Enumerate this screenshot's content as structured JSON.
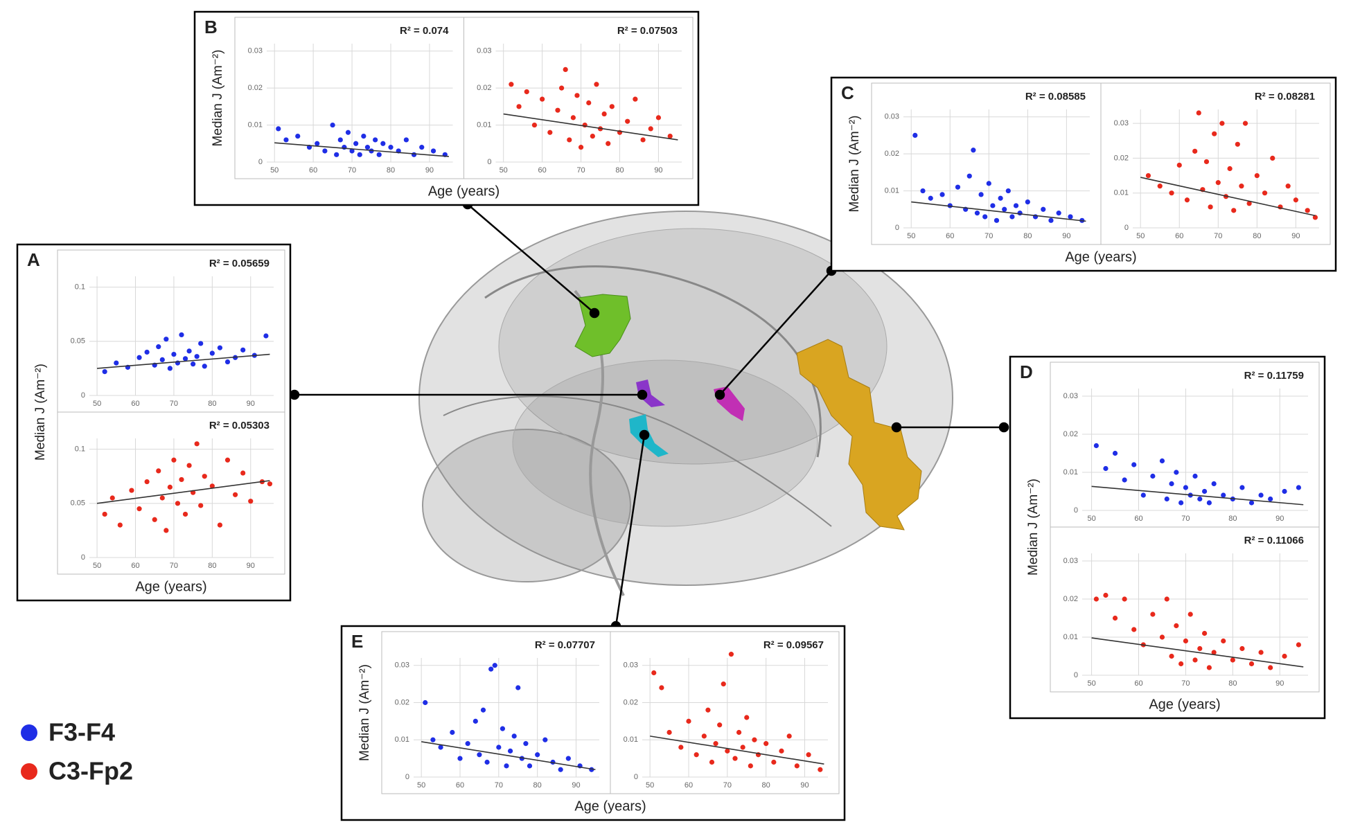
{
  "panels": [
    {
      "letter": "A",
      "y_label": "Median J (Am⁻²)",
      "x_label": "Age (years)"
    },
    {
      "letter": "B",
      "y_label": "Median J (Am⁻²)",
      "x_label": "Age (years)"
    },
    {
      "letter": "C",
      "y_label": "Median J (Am⁻²)",
      "x_label": "Age (years)"
    },
    {
      "letter": "D",
      "y_label": "Median J (Am⁻²)",
      "x_label": "Age (years)"
    },
    {
      "letter": "E",
      "y_label": "Median J (Am⁻²)",
      "x_label": "Age (years)"
    }
  ],
  "legend": [
    {
      "name": "F3-F4",
      "color": "#1f2ee6"
    },
    {
      "name": "C3-Fp2",
      "color": "#e8291c"
    }
  ],
  "chart_data": [
    {
      "type": "scatter",
      "annotation": "R² = 0.05659",
      "color": "#1f2ee6",
      "xlim": [
        48,
        96
      ],
      "ylim": [
        0,
        0.11
      ],
      "xticks": [
        50,
        60,
        70,
        80,
        90
      ],
      "yticks": [
        0,
        0.05,
        0.1
      ],
      "grid": true,
      "x": [
        52,
        55,
        58,
        61,
        63,
        65,
        66,
        67,
        68,
        69,
        70,
        71,
        72,
        73,
        74,
        75,
        76,
        77,
        78,
        80,
        82,
        84,
        86,
        88,
        91,
        94
      ],
      "values": [
        0.022,
        0.03,
        0.026,
        0.035,
        0.04,
        0.028,
        0.045,
        0.033,
        0.052,
        0.025,
        0.038,
        0.03,
        0.056,
        0.034,
        0.041,
        0.029,
        0.036,
        0.048,
        0.027,
        0.039,
        0.044,
        0.031,
        0.035,
        0.042,
        0.037,
        0.055
      ],
      "trend": {
        "x": [
          50,
          95
        ],
        "y": [
          0.025,
          0.038
        ]
      }
    },
    {
      "type": "scatter",
      "annotation": "R² = 0.05303",
      "color": "#e8291c",
      "xlim": [
        48,
        96
      ],
      "ylim": [
        0,
        0.11
      ],
      "xticks": [
        50,
        60,
        70,
        80,
        90
      ],
      "yticks": [
        0,
        0.05,
        0.1
      ],
      "grid": true,
      "x": [
        52,
        54,
        56,
        59,
        61,
        63,
        65,
        66,
        67,
        68,
        69,
        70,
        71,
        72,
        73,
        74,
        75,
        76,
        77,
        78,
        80,
        82,
        84,
        86,
        88,
        90,
        93,
        95
      ],
      "values": [
        0.04,
        0.055,
        0.03,
        0.062,
        0.045,
        0.07,
        0.035,
        0.08,
        0.055,
        0.025,
        0.065,
        0.09,
        0.05,
        0.072,
        0.04,
        0.085,
        0.06,
        0.105,
        0.048,
        0.075,
        0.066,
        0.03,
        0.09,
        0.058,
        0.078,
        0.052,
        0.07,
        0.068
      ],
      "trend": {
        "x": [
          50,
          95
        ],
        "y": [
          0.05,
          0.071
        ]
      }
    },
    {
      "type": "scatter",
      "annotation": "R² = 0.074",
      "color": "#1f2ee6",
      "xlim": [
        48,
        96
      ],
      "ylim": [
        0,
        0.032
      ],
      "xticks": [
        50,
        60,
        70,
        80,
        90
      ],
      "yticks": [
        0,
        0.01,
        0.02,
        0.03
      ],
      "grid": true,
      "x": [
        51,
        53,
        56,
        59,
        61,
        63,
        65,
        66,
        67,
        68,
        69,
        70,
        71,
        72,
        73,
        74,
        75,
        76,
        77,
        78,
        80,
        82,
        84,
        86,
        88,
        91,
        94
      ],
      "values": [
        0.009,
        0.006,
        0.007,
        0.004,
        0.005,
        0.003,
        0.01,
        0.002,
        0.006,
        0.004,
        0.008,
        0.003,
        0.005,
        0.002,
        0.007,
        0.004,
        0.003,
        0.006,
        0.002,
        0.005,
        0.004,
        0.003,
        0.006,
        0.002,
        0.004,
        0.003,
        0.002
      ],
      "trend": {
        "x": [
          50,
          95
        ],
        "y": [
          0.0052,
          0.0015
        ]
      }
    },
    {
      "type": "scatter",
      "annotation": "R² = 0.07503",
      "color": "#e8291c",
      "xlim": [
        48,
        96
      ],
      "ylim": [
        0,
        0.032
      ],
      "xticks": [
        50,
        60,
        70,
        80,
        90
      ],
      "yticks": [
        0,
        0.01,
        0.02,
        0.03
      ],
      "grid": true,
      "x": [
        52,
        54,
        56,
        58,
        60,
        62,
        64,
        65,
        66,
        67,
        68,
        69,
        70,
        71,
        72,
        73,
        74,
        75,
        76,
        77,
        78,
        80,
        82,
        84,
        86,
        88,
        90,
        93
      ],
      "values": [
        0.021,
        0.015,
        0.019,
        0.01,
        0.017,
        0.008,
        0.014,
        0.02,
        0.025,
        0.006,
        0.012,
        0.018,
        0.004,
        0.01,
        0.016,
        0.007,
        0.021,
        0.009,
        0.013,
        0.005,
        0.015,
        0.008,
        0.011,
        0.017,
        0.006,
        0.009,
        0.012,
        0.007
      ],
      "trend": {
        "x": [
          50,
          95
        ],
        "y": [
          0.013,
          0.006
        ]
      }
    },
    {
      "type": "scatter",
      "annotation": "R² = 0.08585",
      "color": "#1f2ee6",
      "xlim": [
        48,
        96
      ],
      "ylim": [
        0,
        0.032
      ],
      "xticks": [
        50,
        60,
        70,
        80,
        90
      ],
      "yticks": [
        0,
        0.01,
        0.02,
        0.03
      ],
      "grid": true,
      "x": [
        51,
        53,
        55,
        58,
        60,
        62,
        64,
        65,
        66,
        67,
        68,
        69,
        70,
        71,
        72,
        73,
        74,
        75,
        76,
        77,
        78,
        80,
        82,
        84,
        86,
        88,
        91,
        94
      ],
      "values": [
        0.025,
        0.01,
        0.008,
        0.009,
        0.006,
        0.011,
        0.005,
        0.014,
        0.021,
        0.004,
        0.009,
        0.003,
        0.012,
        0.006,
        0.002,
        0.008,
        0.005,
        0.01,
        0.003,
        0.006,
        0.004,
        0.007,
        0.003,
        0.005,
        0.002,
        0.004,
        0.003,
        0.002
      ],
      "trend": {
        "x": [
          50,
          95
        ],
        "y": [
          0.007,
          0.0018
        ]
      }
    },
    {
      "type": "scatter",
      "annotation": "R² = 0.08281",
      "color": "#e8291c",
      "xlim": [
        48,
        96
      ],
      "ylim": [
        0,
        0.034
      ],
      "xticks": [
        50,
        60,
        70,
        80,
        90
      ],
      "yticks": [
        0,
        0.01,
        0.02,
        0.03
      ],
      "grid": true,
      "x": [
        52,
        55,
        58,
        60,
        62,
        64,
        65,
        66,
        67,
        68,
        69,
        70,
        71,
        72,
        73,
        74,
        75,
        76,
        77,
        78,
        80,
        82,
        84,
        86,
        88,
        90,
        93,
        95
      ],
      "values": [
        0.015,
        0.012,
        0.01,
        0.018,
        0.008,
        0.022,
        0.033,
        0.011,
        0.019,
        0.006,
        0.027,
        0.013,
        0.03,
        0.009,
        0.017,
        0.005,
        0.024,
        0.012,
        0.03,
        0.007,
        0.015,
        0.01,
        0.02,
        0.006,
        0.012,
        0.008,
        0.005,
        0.003
      ],
      "trend": {
        "x": [
          50,
          95
        ],
        "y": [
          0.0145,
          0.0035
        ]
      }
    },
    {
      "type": "scatter",
      "annotation": "R² = 0.11759",
      "color": "#1f2ee6",
      "xlim": [
        48,
        96
      ],
      "ylim": [
        0,
        0.032
      ],
      "xticks": [
        50,
        60,
        70,
        80,
        90
      ],
      "yticks": [
        0,
        0.01,
        0.02,
        0.03
      ],
      "grid": true,
      "x": [
        51,
        53,
        55,
        57,
        59,
        61,
        63,
        65,
        66,
        67,
        68,
        69,
        70,
        71,
        72,
        73,
        74,
        75,
        76,
        78,
        80,
        82,
        84,
        86,
        88,
        91,
        94
      ],
      "values": [
        0.017,
        0.011,
        0.015,
        0.008,
        0.012,
        0.004,
        0.009,
        0.013,
        0.003,
        0.007,
        0.01,
        0.002,
        0.006,
        0.004,
        0.009,
        0.003,
        0.005,
        0.002,
        0.007,
        0.004,
        0.003,
        0.006,
        0.002,
        0.004,
        0.003,
        0.005,
        0.006
      ],
      "trend": {
        "x": [
          50,
          95
        ],
        "y": [
          0.0063,
          0.0015
        ]
      }
    },
    {
      "type": "scatter",
      "annotation": "R² = 0.11066",
      "color": "#e8291c",
      "xlim": [
        48,
        96
      ],
      "ylim": [
        0,
        0.032
      ],
      "xticks": [
        50,
        60,
        70,
        80,
        90
      ],
      "yticks": [
        0,
        0.01,
        0.02,
        0.03
      ],
      "grid": true,
      "x": [
        51,
        53,
        55,
        57,
        59,
        61,
        63,
        65,
        66,
        67,
        68,
        69,
        70,
        71,
        72,
        73,
        74,
        75,
        76,
        78,
        80,
        82,
        84,
        86,
        88,
        91,
        94
      ],
      "values": [
        0.02,
        0.021,
        0.015,
        0.02,
        0.012,
        0.008,
        0.016,
        0.01,
        0.02,
        0.005,
        0.013,
        0.003,
        0.009,
        0.016,
        0.004,
        0.007,
        0.011,
        0.002,
        0.006,
        0.009,
        0.004,
        0.007,
        0.003,
        0.006,
        0.002,
        0.005,
        0.008
      ],
      "trend": {
        "x": [
          50,
          95
        ],
        "y": [
          0.0098,
          0.0022
        ]
      }
    },
    {
      "type": "scatter",
      "annotation": "R² = 0.07707",
      "color": "#1f2ee6",
      "xlim": [
        48,
        96
      ],
      "ylim": [
        0,
        0.032
      ],
      "xticks": [
        50,
        60,
        70,
        80,
        90
      ],
      "yticks": [
        0,
        0.01,
        0.02,
        0.03
      ],
      "grid": true,
      "x": [
        51,
        53,
        55,
        58,
        60,
        62,
        64,
        65,
        66,
        67,
        68,
        69,
        70,
        71,
        72,
        73,
        74,
        75,
        76,
        77,
        78,
        80,
        82,
        84,
        86,
        88,
        91,
        94
      ],
      "values": [
        0.02,
        0.01,
        0.008,
        0.012,
        0.005,
        0.009,
        0.015,
        0.006,
        0.018,
        0.004,
        0.029,
        0.03,
        0.008,
        0.013,
        0.003,
        0.007,
        0.011,
        0.024,
        0.005,
        0.009,
        0.003,
        0.006,
        0.01,
        0.004,
        0.002,
        0.005,
        0.003,
        0.002
      ],
      "trend": {
        "x": [
          50,
          95
        ],
        "y": [
          0.0095,
          0.002
        ]
      }
    },
    {
      "type": "scatter",
      "annotation": "R² = 0.09567",
      "color": "#e8291c",
      "xlim": [
        48,
        96
      ],
      "ylim": [
        0,
        0.032
      ],
      "xticks": [
        50,
        60,
        70,
        80,
        90
      ],
      "yticks": [
        0,
        0.01,
        0.02,
        0.03
      ],
      "grid": true,
      "x": [
        51,
        53,
        55,
        58,
        60,
        62,
        64,
        65,
        66,
        67,
        68,
        69,
        70,
        71,
        72,
        73,
        74,
        75,
        76,
        77,
        78,
        80,
        82,
        84,
        86,
        88,
        91,
        94
      ],
      "values": [
        0.028,
        0.024,
        0.012,
        0.008,
        0.015,
        0.006,
        0.011,
        0.018,
        0.004,
        0.009,
        0.014,
        0.025,
        0.007,
        0.033,
        0.005,
        0.012,
        0.008,
        0.016,
        0.003,
        0.01,
        0.006,
        0.009,
        0.004,
        0.007,
        0.011,
        0.003,
        0.006,
        0.002
      ],
      "trend": {
        "x": [
          50,
          95
        ],
        "y": [
          0.011,
          0.0035
        ]
      }
    }
  ]
}
